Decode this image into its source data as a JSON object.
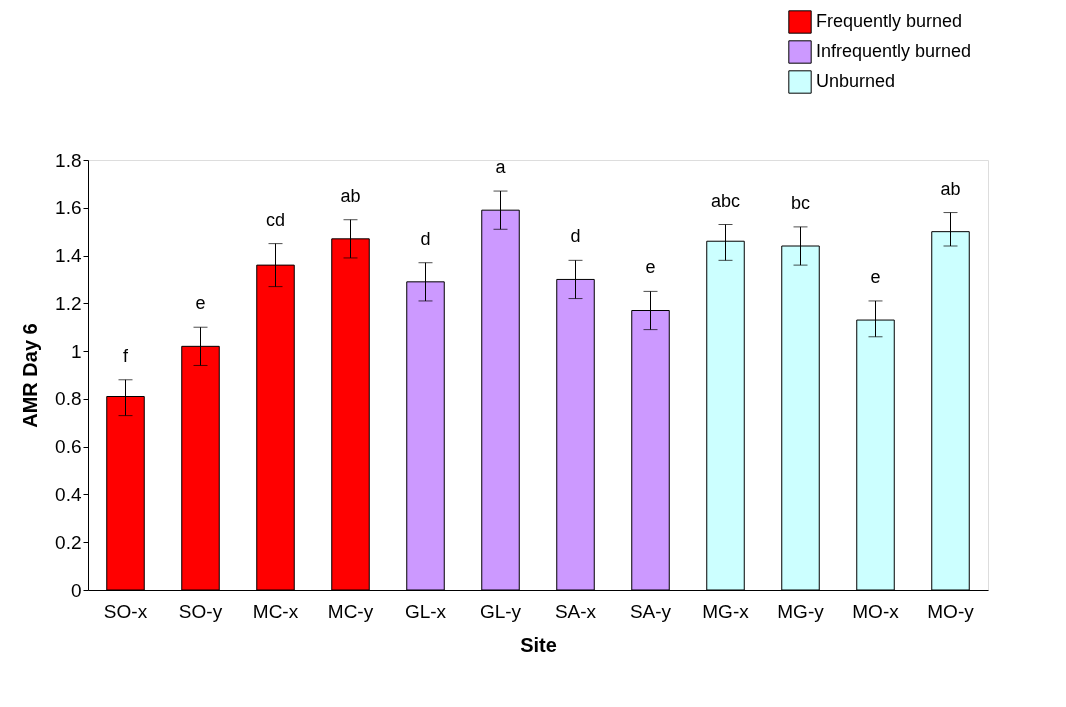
{
  "chart_data": {
    "type": "bar",
    "xlabel": "Site",
    "ylabel": "AMR Day 6",
    "categories": [
      "SO-x",
      "SO-y",
      "MC-x",
      "MC-y",
      "GL-x",
      "GL-y",
      "SA-x",
      "SA-y",
      "MG-x",
      "MG-y",
      "MO-x",
      "MO-y"
    ],
    "series": [
      {
        "name": "Frequently burned",
        "color": "#ff0000",
        "values": [
          0.81,
          1.02,
          1.36,
          1.47,
          null,
          null,
          null,
          null,
          null,
          null,
          null,
          null
        ],
        "errors": [
          [
            0.73,
            0.88
          ],
          [
            0.94,
            1.1
          ],
          [
            1.27,
            1.45
          ],
          [
            1.39,
            1.55
          ],
          null,
          null,
          null,
          null,
          null,
          null,
          null,
          null
        ]
      },
      {
        "name": "Infrequently burned",
        "color": "#cc99ff",
        "values": [
          null,
          null,
          null,
          null,
          1.29,
          1.59,
          1.3,
          1.17,
          null,
          null,
          null,
          null
        ],
        "errors": [
          null,
          null,
          null,
          null,
          [
            1.21,
            1.37
          ],
          [
            1.51,
            1.67
          ],
          [
            1.22,
            1.38
          ],
          [
            1.09,
            1.25
          ],
          null,
          null,
          null,
          null
        ]
      },
      {
        "name": "Unburned",
        "color": "#ccffff",
        "values": [
          null,
          null,
          null,
          null,
          null,
          null,
          null,
          null,
          1.46,
          1.44,
          1.13,
          1.5
        ],
        "errors": [
          null,
          null,
          null,
          null,
          null,
          null,
          null,
          null,
          [
            1.38,
            1.53
          ],
          [
            1.36,
            1.52
          ],
          [
            1.06,
            1.21
          ],
          [
            1.44,
            1.58
          ]
        ]
      }
    ],
    "ylim": [
      0,
      1.8
    ],
    "yticks": [
      0,
      {
        "value": 0.2,
        "label": "0.2"
      },
      {
        "value": 0.4,
        "label": "0.4"
      },
      {
        "value": 0.6,
        "label": "0.6"
      },
      {
        "value": 0.8,
        "label": "0.8"
      },
      1,
      {
        "value": 1.2,
        "label": "1.2"
      },
      {
        "value": 1.4,
        "label": "1.4"
      },
      {
        "value": 1.6,
        "label": "1.6"
      },
      {
        "value": 1.8,
        "label": "1.8"
      }
    ],
    "grid": false,
    "legend": "top right",
    "annotations": [
      {
        "text": "f",
        "x": "SO-x",
        "y": 0.88
      },
      {
        "text": "e",
        "x": "SO-y",
        "y": 1.1
      },
      {
        "text": "cd",
        "x": "MC-x",
        "y": 1.45
      },
      {
        "text": "ab",
        "x": "MC-y",
        "y": 1.55
      },
      {
        "text": "d",
        "x": "GL-x",
        "y": 1.37
      },
      {
        "text": "a",
        "x": "GL-y",
        "y": 1.67
      },
      {
        "text": "d",
        "x": "SA-x",
        "y": 1.38
      },
      {
        "text": "e",
        "x": "SA-y",
        "y": 1.25
      },
      {
        "text": "abc",
        "x": "MG-x",
        "y": 1.53
      },
      {
        "text": "bc",
        "x": "MG-y",
        "y": 1.52
      },
      {
        "text": "e",
        "x": "MO-x",
        "y": 1.21
      },
      {
        "text": "ab",
        "x": "MO-y",
        "y": 1.58
      }
    ]
  }
}
